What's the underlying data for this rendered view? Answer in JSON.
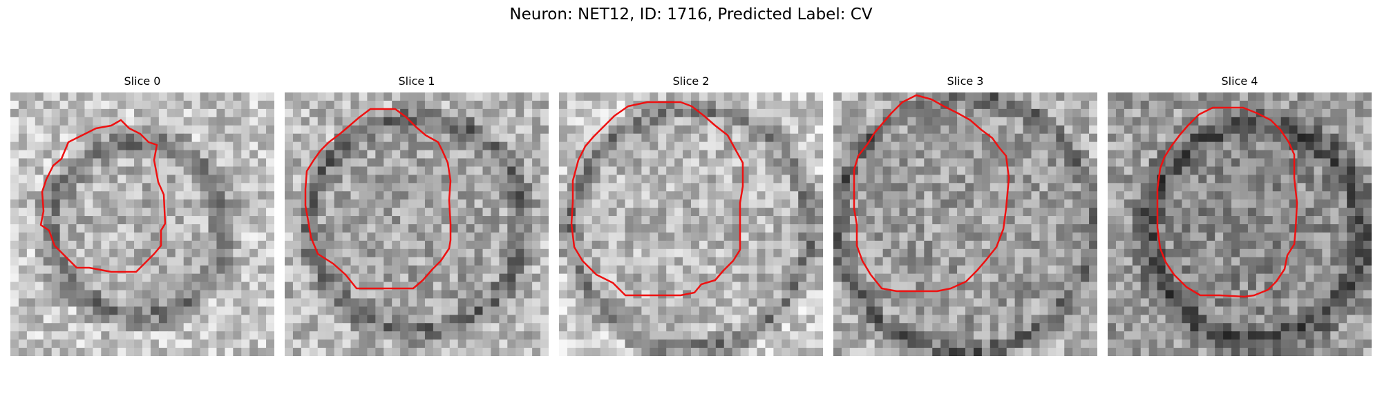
{
  "figure": {
    "title": "Neuron: NET12, ID: 1716, Predicted Label: CV"
  },
  "contour_color": "#ee1111",
  "panels": [
    {
      "label": "Slice 0"
    },
    {
      "label": "Slice 1"
    },
    {
      "label": "Slice 2"
    },
    {
      "label": "Slice 3"
    },
    {
      "label": "Slice 4"
    }
  ]
}
